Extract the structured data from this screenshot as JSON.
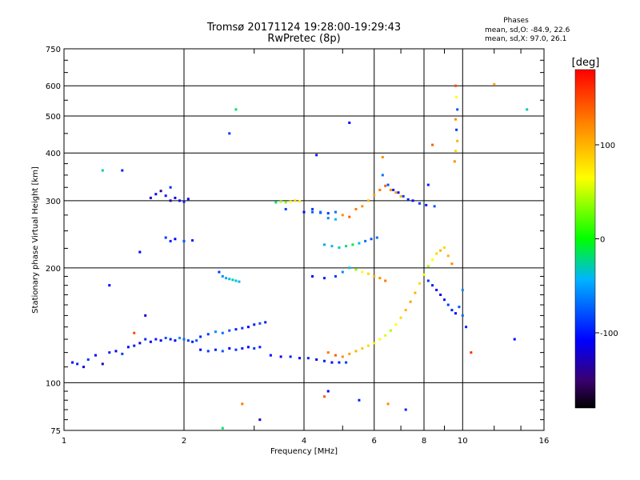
{
  "header": {
    "title_line1": "Tromsø 20171124 19:28:00-19:29:43",
    "title_line2": "RwPretec (8p)"
  },
  "stats": {
    "title": "Phases",
    "o_line": "mean, sd,O: -84.9, 22.6",
    "x_line": "mean, sd,X:  97.0, 26.1"
  },
  "chart_data": {
    "type": "scatter",
    "xlabel": "Frequency [MHz]",
    "ylabel": "Stationary phase Virtual Height [km]",
    "x_scale": "log",
    "y_scale": "log",
    "xlim": [
      1,
      16
    ],
    "ylim": [
      75,
      750
    ],
    "x_ticks": [
      1,
      2,
      4,
      6,
      8,
      10,
      16
    ],
    "y_ticks": [
      75,
      100,
      200,
      300,
      400,
      500,
      600,
      750
    ],
    "grid": true,
    "colorbar": {
      "label": "[deg]",
      "range": [
        -180,
        180
      ],
      "ticks": [
        100,
        0,
        -100
      ],
      "colormap": "rainbow"
    },
    "series": [
      {
        "points": [
          [
            1.05,
            113,
            -110
          ],
          [
            1.08,
            112,
            -100
          ],
          [
            1.12,
            110,
            -120
          ],
          [
            1.15,
            115,
            -90
          ],
          [
            1.2,
            118,
            -110
          ],
          [
            1.25,
            112,
            -130
          ],
          [
            1.3,
            120,
            -100
          ],
          [
            1.35,
            121,
            -115
          ],
          [
            1.4,
            119,
            -90
          ],
          [
            1.45,
            124,
            -110
          ],
          [
            1.5,
            125,
            -100
          ],
          [
            1.55,
            127,
            -120
          ],
          [
            1.6,
            130,
            -95
          ],
          [
            1.65,
            128,
            -110
          ],
          [
            1.7,
            130,
            -100
          ],
          [
            1.75,
            129,
            -115
          ],
          [
            1.8,
            131,
            -80
          ],
          [
            1.85,
            130,
            -100
          ],
          [
            1.9,
            129,
            -110
          ],
          [
            1.95,
            131,
            -60
          ],
          [
            2.0,
            130,
            -70
          ],
          [
            2.05,
            129,
            -90
          ],
          [
            2.1,
            128,
            -100
          ],
          [
            2.15,
            129,
            -80
          ],
          [
            2.2,
            132,
            -100
          ],
          [
            2.3,
            134,
            -90
          ],
          [
            2.4,
            136,
            -60
          ],
          [
            2.5,
            135,
            -70
          ],
          [
            2.6,
            137,
            -80
          ],
          [
            2.7,
            138,
            -100
          ],
          [
            2.8,
            139,
            -90
          ],
          [
            2.9,
            140,
            -110
          ],
          [
            3.0,
            142,
            -100
          ],
          [
            3.1,
            143,
            -80
          ],
          [
            3.2,
            144,
            -100
          ],
          [
            2.2,
            122,
            -110
          ],
          [
            2.3,
            121,
            -90
          ],
          [
            2.4,
            122,
            -100
          ],
          [
            2.5,
            121,
            -80
          ],
          [
            2.6,
            123,
            -110
          ],
          [
            2.7,
            122,
            -90
          ],
          [
            2.8,
            123,
            -100
          ],
          [
            2.9,
            124,
            -110
          ],
          [
            3.0,
            123,
            -90
          ],
          [
            3.1,
            124,
            -100
          ],
          [
            3.3,
            118,
            -110
          ],
          [
            3.5,
            117,
            -120
          ],
          [
            3.7,
            117,
            -100
          ],
          [
            3.9,
            116,
            -110
          ],
          [
            4.1,
            116,
            -100
          ],
          [
            4.3,
            115,
            -120
          ],
          [
            4.5,
            114,
            -100
          ],
          [
            4.7,
            113,
            -110
          ],
          [
            4.9,
            113,
            -100
          ],
          [
            5.1,
            113,
            -90
          ]
        ]
      },
      {
        "points": [
          [
            1.7,
            312,
            -110
          ],
          [
            1.75,
            318,
            -140
          ],
          [
            1.8,
            309,
            -100
          ],
          [
            1.85,
            300,
            -130
          ],
          [
            1.9,
            305,
            -120
          ],
          [
            1.95,
            300,
            -110
          ],
          [
            2.0,
            298,
            -100
          ],
          [
            2.05,
            303,
            -120
          ],
          [
            1.65,
            305,
            -130
          ],
          [
            1.85,
            325,
            -95
          ],
          [
            1.8,
            240,
            -90
          ],
          [
            1.85,
            235,
            -100
          ],
          [
            1.9,
            238,
            -110
          ],
          [
            2.0,
            235,
            -80
          ],
          [
            2.1,
            236,
            -100
          ],
          [
            2.45,
            195,
            -90
          ],
          [
            2.5,
            190,
            -60
          ],
          [
            2.55,
            188,
            -50
          ],
          [
            2.6,
            187,
            -40
          ],
          [
            2.65,
            186,
            -30
          ],
          [
            2.7,
            185,
            -35
          ],
          [
            2.75,
            184,
            -45
          ],
          [
            3.4,
            297,
            -20
          ],
          [
            3.5,
            298,
            40
          ],
          [
            3.6,
            297,
            30
          ],
          [
            3.7,
            298,
            60
          ],
          [
            3.8,
            300,
            80
          ],
          [
            3.9,
            299,
            70
          ],
          [
            3.6,
            285,
            -90
          ],
          [
            4.0,
            280,
            -110
          ],
          [
            4.2,
            280,
            -80
          ],
          [
            4.4,
            279,
            -100
          ],
          [
            4.6,
            278,
            -90
          ],
          [
            4.8,
            280,
            -70
          ]
        ]
      },
      {
        "points": [
          [
            4.2,
            285,
            -90
          ],
          [
            4.4,
            280,
            -70
          ],
          [
            4.6,
            270,
            -60
          ],
          [
            4.8,
            268,
            -40
          ],
          [
            5.0,
            275,
            120
          ],
          [
            5.2,
            272,
            140
          ],
          [
            5.4,
            285,
            130
          ],
          [
            5.6,
            290,
            120
          ],
          [
            5.8,
            300,
            100
          ],
          [
            6.0,
            310,
            110
          ],
          [
            6.2,
            320,
            130
          ],
          [
            6.4,
            328,
            140
          ],
          [
            6.6,
            320,
            120
          ],
          [
            6.8,
            315,
            110
          ],
          [
            7.0,
            308,
            100
          ],
          [
            4.5,
            230,
            -50
          ],
          [
            4.7,
            228,
            -40
          ],
          [
            4.9,
            226,
            -30
          ],
          [
            5.1,
            228,
            -20
          ],
          [
            5.3,
            230,
            -10
          ],
          [
            5.5,
            232,
            -40
          ],
          [
            5.7,
            235,
            -70
          ],
          [
            5.9,
            238,
            -80
          ],
          [
            6.1,
            240,
            -70
          ],
          [
            4.2,
            190,
            -110
          ],
          [
            4.5,
            188,
            -100
          ],
          [
            4.8,
            190,
            -90
          ],
          [
            5.0,
            195,
            -60
          ],
          [
            5.2,
            200,
            -40
          ],
          [
            5.4,
            198,
            30
          ],
          [
            5.6,
            195,
            60
          ],
          [
            5.8,
            193,
            80
          ],
          [
            6.0,
            190,
            100
          ],
          [
            6.2,
            188,
            120
          ],
          [
            6.4,
            185,
            130
          ],
          [
            4.6,
            120,
            130
          ],
          [
            4.8,
            118,
            140
          ],
          [
            5.0,
            117,
            120
          ],
          [
            5.2,
            119,
            110
          ],
          [
            5.4,
            121,
            100
          ],
          [
            5.6,
            123,
            90
          ],
          [
            5.8,
            125,
            80
          ],
          [
            6.0,
            127,
            70
          ],
          [
            6.2,
            130,
            60
          ],
          [
            6.4,
            133,
            50
          ],
          [
            6.6,
            137,
            40
          ],
          [
            6.8,
            142,
            60
          ],
          [
            7.0,
            148,
            80
          ],
          [
            7.2,
            155,
            100
          ],
          [
            7.4,
            163,
            110
          ],
          [
            7.6,
            172,
            100
          ],
          [
            7.8,
            182,
            80
          ],
          [
            8.0,
            192,
            60
          ],
          [
            8.2,
            202,
            40
          ],
          [
            8.4,
            210,
            60
          ],
          [
            8.6,
            218,
            80
          ],
          [
            8.8,
            222,
            100
          ],
          [
            9.0,
            226,
            80
          ],
          [
            9.2,
            215,
            100
          ],
          [
            9.4,
            205,
            120
          ],
          [
            6.3,
            350,
            -70
          ],
          [
            6.5,
            330,
            -80
          ],
          [
            6.7,
            320,
            -100
          ],
          [
            6.9,
            315,
            -110
          ],
          [
            7.1,
            308,
            -90
          ],
          [
            7.3,
            302,
            -100
          ],
          [
            7.5,
            300,
            -110
          ],
          [
            7.8,
            295,
            -90
          ],
          [
            8.1,
            292,
            -100
          ],
          [
            8.5,
            290,
            -80
          ],
          [
            8.2,
            185,
            -90
          ],
          [
            8.4,
            180,
            -100
          ],
          [
            8.6,
            175,
            -110
          ],
          [
            8.8,
            170,
            -120
          ],
          [
            9.0,
            165,
            -100
          ],
          [
            9.2,
            160,
            -90
          ],
          [
            9.4,
            155,
            -100
          ],
          [
            9.6,
            152,
            -110
          ],
          [
            9.8,
            158,
            -80
          ],
          [
            10.0,
            150,
            -70
          ]
        ]
      },
      {
        "points": [
          [
            9.6,
            600,
            150
          ],
          [
            9.65,
            560,
            60
          ],
          [
            9.7,
            520,
            -80
          ],
          [
            9.6,
            490,
            120
          ],
          [
            9.65,
            460,
            -90
          ],
          [
            9.7,
            430,
            100
          ],
          [
            9.6,
            405,
            80
          ],
          [
            9.55,
            380,
            120
          ],
          [
            8.2,
            330,
            -100
          ],
          [
            8.4,
            420,
            140
          ],
          [
            12.0,
            605,
            110
          ],
          [
            14.5,
            520,
            -30
          ],
          [
            2.7,
            520,
            -20
          ],
          [
            2.6,
            450,
            -90
          ],
          [
            5.2,
            480,
            -110
          ],
          [
            6.3,
            390,
            120
          ],
          [
            4.3,
            395,
            -100
          ],
          [
            1.4,
            360,
            -100
          ],
          [
            1.25,
            360,
            -30
          ],
          [
            1.55,
            220,
            -110
          ],
          [
            1.3,
            180,
            -110
          ],
          [
            1.6,
            150,
            -120
          ],
          [
            1.5,
            135,
            150
          ],
          [
            10.5,
            120,
            160
          ],
          [
            10.2,
            140,
            -100
          ],
          [
            10.0,
            175,
            -60
          ],
          [
            13.5,
            130,
            -110
          ],
          [
            5.5,
            90,
            -100
          ],
          [
            6.5,
            88,
            120
          ],
          [
            7.2,
            85,
            -100
          ],
          [
            2.8,
            88,
            130
          ],
          [
            3.1,
            80,
            -130
          ],
          [
            4.5,
            92,
            140
          ],
          [
            4.6,
            95,
            -110
          ],
          [
            2.5,
            76,
            -20
          ]
        ]
      }
    ]
  }
}
